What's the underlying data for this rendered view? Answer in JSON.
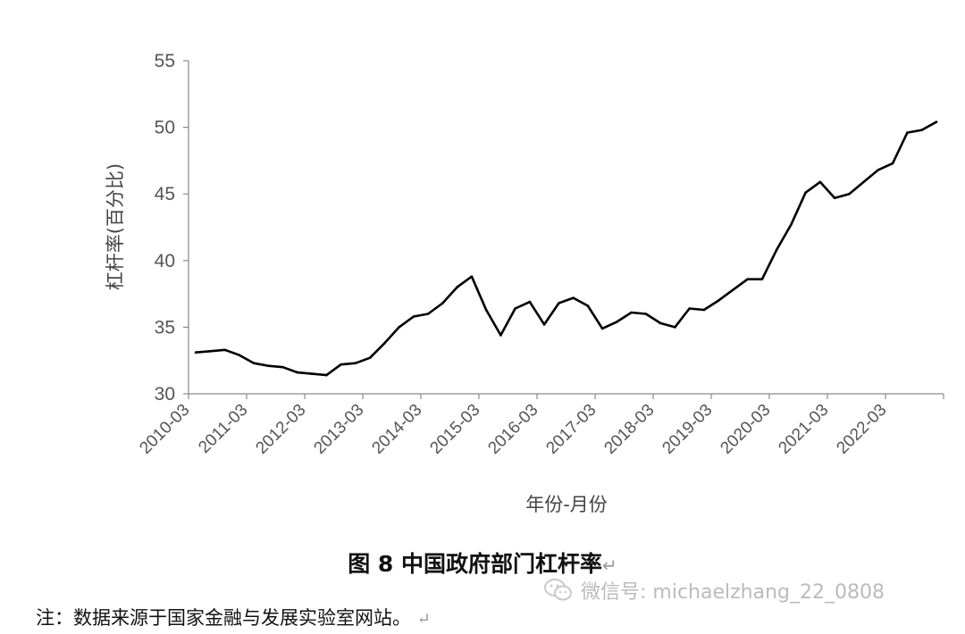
{
  "chart_data": {
    "type": "line",
    "ylabel": "杠杆率(百分比)",
    "xlabel": "年份-月份",
    "ylim": [
      30,
      55
    ],
    "yticks": [
      30,
      35,
      40,
      45,
      50,
      55
    ],
    "xticks": [
      "2010-03",
      "2011-03",
      "2012-03",
      "2013-03",
      "2014-03",
      "2015-03",
      "2016-03",
      "2017-03",
      "2018-03",
      "2019-03",
      "2020-03",
      "2021-03",
      "2022-03"
    ],
    "grid": false,
    "series": [
      {
        "values": [
          33.1,
          33.2,
          33.3,
          32.9,
          32.3,
          32.1,
          32.0,
          31.6,
          31.5,
          31.4,
          32.2,
          32.3,
          32.7,
          33.8,
          35.0,
          35.8,
          36.0,
          36.8,
          38.0,
          38.8,
          36.3,
          34.4,
          36.4,
          36.9,
          35.2,
          36.8,
          37.2,
          36.6,
          34.9,
          35.4,
          36.1,
          36.0,
          35.3,
          35.0,
          36.4,
          36.3,
          37.0,
          37.8,
          38.6,
          38.6,
          40.8,
          42.7,
          45.1,
          45.9,
          44.7,
          45.0,
          45.9,
          46.8,
          47.3,
          49.6,
          49.8,
          50.4
        ]
      }
    ],
    "color": "#000000"
  },
  "caption": {
    "text": "图 8  中国政府部门杠杆率",
    "mark": "↵"
  },
  "note": {
    "text": "注：数据来源于国家金融与发展实验室网站。",
    "mark": "↵"
  },
  "watermark": {
    "icon": "wechat-icon",
    "text": "微信号: michaelzhang_22_0808"
  }
}
